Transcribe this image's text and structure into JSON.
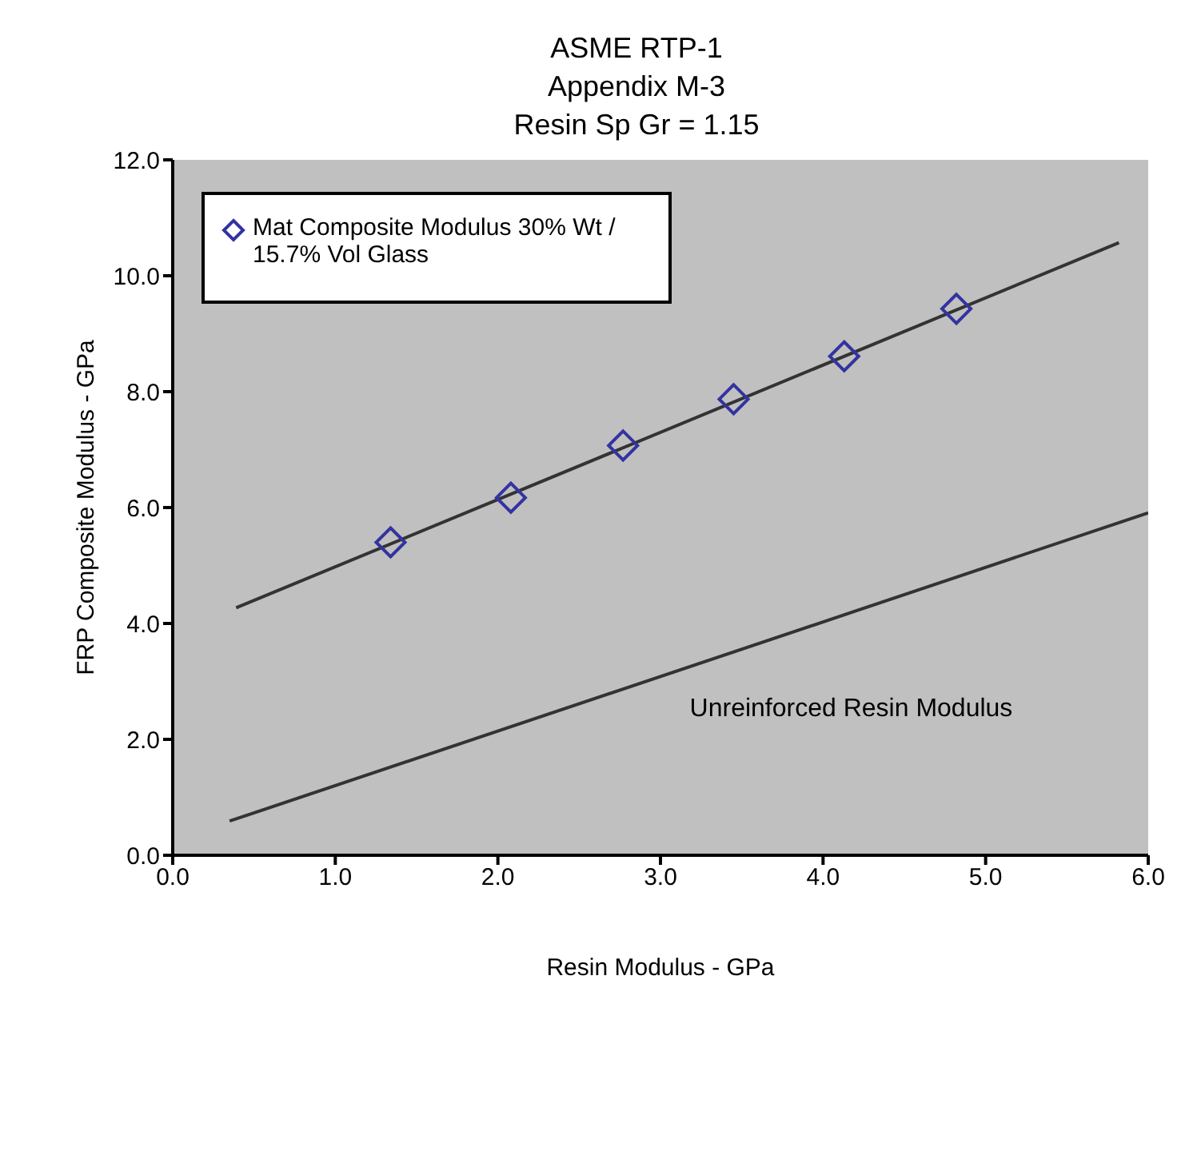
{
  "chart_data": {
    "type": "scatter",
    "title": "ASME RTP-1\nAppendix M-3\nResin  Sp Gr = 1.15",
    "xlabel": "Resin Modulus - GPa",
    "ylabel": "FRP Composite Modulus - GPa",
    "annotations": [
      "Unreinforced Resin Modulus"
    ],
    "series": [
      {
        "name": "Mat Composite Modulus 30% Wt / 15.7% Vol Glass",
        "color": "#3333a0",
        "marker": "diamond",
        "x": [
          1.34,
          2.08,
          2.77,
          3.45,
          4.13,
          4.82
        ],
        "values": [
          5.4,
          6.17,
          7.07,
          7.87,
          8.61,
          9.43
        ]
      },
      {
        "type": "line",
        "color": "#333333",
        "marker": "none",
        "x": [
          0.39,
          5.82
        ],
        "values": [
          4.27,
          10.57
        ]
      },
      {
        "type": "line",
        "color": "#333333",
        "marker": "none",
        "x": [
          0.35,
          6.0
        ],
        "values": [
          0.59,
          5.91
        ]
      }
    ],
    "xlim": [
      0,
      6
    ],
    "xticks": [
      {
        "value": 0,
        "label": "0.0"
      },
      {
        "value": 1,
        "label": "1.0"
      },
      {
        "value": 2,
        "label": "2.0"
      },
      {
        "value": 3,
        "label": "3.0"
      },
      {
        "value": 4,
        "label": "4.0"
      },
      {
        "value": 5,
        "label": "5.0"
      },
      {
        "value": 6,
        "label": "6.0"
      }
    ],
    "ylim": [
      0,
      12
    ],
    "yticks": [
      {
        "value": 0,
        "label": "0.0"
      },
      {
        "value": 2,
        "label": "2.0"
      },
      {
        "value": 4,
        "label": "4.0"
      },
      {
        "value": 6,
        "label": "6.0"
      },
      {
        "value": 8,
        "label": "8.0"
      },
      {
        "value": 10,
        "label": "10.0"
      },
      {
        "value": 12,
        "label": "12.0"
      }
    ],
    "grid": false,
    "legend": "top left"
  }
}
